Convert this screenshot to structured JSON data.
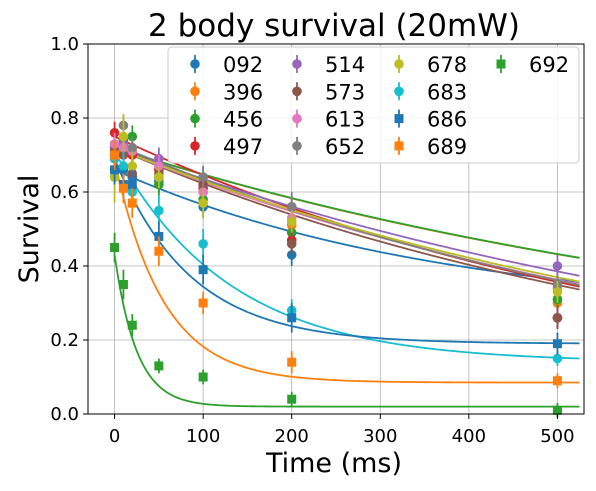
{
  "chart_data": {
    "type": "scatter",
    "title": "2 body survival (20mW)",
    "xlabel": "Time (ms)",
    "ylabel": "Survival",
    "xlim": [
      -30,
      530
    ],
    "ylim": [
      0,
      1
    ],
    "xticks": [
      0,
      100,
      200,
      300,
      400,
      500
    ],
    "yticks": [
      0.0,
      0.2,
      0.4,
      0.6,
      0.8,
      1.0
    ],
    "xtick_labels": [
      "0",
      "100",
      "200",
      "300",
      "400",
      "500"
    ],
    "ytick_labels": [
      "0.0",
      "0.2",
      "0.4",
      "0.6",
      "0.8",
      "1.0"
    ],
    "grid": true,
    "legend_position": "top-right",
    "legend_columns": 4,
    "fit_model": "exponential decay",
    "x": [
      0,
      10,
      20,
      50,
      100,
      200,
      500
    ],
    "series": [
      {
        "name": "092",
        "color": "#1f77b4",
        "marker": "circle",
        "values": [
          0.66,
          0.66,
          0.64,
          0.63,
          0.56,
          0.43,
          0.26
        ],
        "errors": [
          0.03,
          0.03,
          0.03,
          0.03,
          0.03,
          0.03,
          0.03
        ],
        "fit": {
          "a": 0.4,
          "tau": 370,
          "c": 0.26
        }
      },
      {
        "name": "396",
        "color": "#ff7f0e",
        "marker": "circle",
        "values": [
          0.7,
          0.71,
          0.7,
          0.66,
          0.6,
          0.51,
          0.3
        ],
        "errors": [
          0.03,
          0.03,
          0.03,
          0.03,
          0.03,
          0.03,
          0.03
        ],
        "fit": {
          "a": 0.62,
          "tau": 800,
          "c": 0.1
        }
      },
      {
        "name": "456",
        "color": "#2ca02c",
        "marker": "circle",
        "values": [
          0.72,
          0.74,
          0.75,
          0.62,
          0.58,
          0.49,
          0.31
        ],
        "errors": [
          0.03,
          0.03,
          0.03,
          0.03,
          0.03,
          0.03,
          0.03
        ],
        "fit": {
          "a": 0.63,
          "tau": 820,
          "c": 0.09
        }
      },
      {
        "name": "497",
        "color": "#d62728",
        "marker": "circle",
        "values": [
          0.76,
          0.73,
          0.7,
          0.66,
          0.61,
          0.47,
          0.26
        ],
        "errors": [
          0.03,
          0.03,
          0.03,
          0.03,
          0.03,
          0.03,
          0.03
        ],
        "fit": {
          "a": 0.74,
          "tau": 660,
          "c": 0.01
        }
      },
      {
        "name": "514",
        "color": "#9467bd",
        "marker": "circle",
        "values": [
          0.72,
          0.73,
          0.71,
          0.69,
          0.64,
          0.56,
          0.4
        ],
        "errors": [
          0.03,
          0.03,
          0.03,
          0.03,
          0.03,
          0.03,
          0.03
        ],
        "fit": {
          "a": 0.72,
          "tau": 800,
          "c": 0.0
        }
      },
      {
        "name": "573",
        "color": "#8c564b",
        "marker": "circle",
        "values": [
          0.71,
          0.7,
          0.65,
          0.65,
          0.62,
          0.46,
          0.26
        ],
        "errors": [
          0.03,
          0.03,
          0.03,
          0.03,
          0.03,
          0.03,
          0.03
        ],
        "fit": {
          "a": 0.72,
          "tau": 690,
          "c": 0.0
        }
      },
      {
        "name": "613",
        "color": "#e377c2",
        "marker": "circle",
        "values": [
          0.73,
          0.72,
          0.71,
          0.67,
          0.6,
          0.53,
          0.34
        ],
        "errors": [
          0.03,
          0.03,
          0.03,
          0.03,
          0.03,
          0.03,
          0.03
        ],
        "fit": {
          "a": 0.72,
          "tau": 730,
          "c": 0.0
        }
      },
      {
        "name": "652",
        "color": "#7f7f7f",
        "marker": "circle",
        "values": [
          0.69,
          0.78,
          0.72,
          0.64,
          0.64,
          0.56,
          0.35
        ],
        "errors": [
          0.03,
          0.03,
          0.03,
          0.03,
          0.03,
          0.04,
          0.03
        ],
        "fit": {
          "a": 0.73,
          "tau": 710,
          "c": 0.0
        }
      },
      {
        "name": "678",
        "color": "#bcbd22",
        "marker": "circle",
        "values": [
          0.64,
          0.75,
          0.67,
          0.64,
          0.57,
          0.52,
          0.33
        ],
        "errors": [
          0.07,
          0.06,
          0.04,
          0.03,
          0.04,
          0.03,
          0.03
        ],
        "fit": {
          "a": 0.72,
          "tau": 750,
          "c": 0.0
        }
      },
      {
        "name": "683",
        "color": "#17becf",
        "marker": "circle",
        "values": [
          0.69,
          0.67,
          0.6,
          0.55,
          0.46,
          0.28,
          0.15
        ],
        "errors": [
          0.04,
          0.04,
          0.04,
          0.04,
          0.04,
          0.03,
          0.02
        ],
        "fit": {
          "a": 0.57,
          "tau": 130,
          "c": 0.14
        }
      },
      {
        "name": "686",
        "color": "#1f77b4",
        "marker": "square",
        "values": [
          0.66,
          0.62,
          0.62,
          0.48,
          0.39,
          0.26,
          0.19
        ],
        "errors": [
          0.04,
          0.04,
          0.04,
          0.04,
          0.04,
          0.04,
          0.03
        ],
        "fit": {
          "a": 0.5,
          "tau": 85,
          "c": 0.19
        }
      },
      {
        "name": "689",
        "color": "#ff7f0e",
        "marker": "square",
        "values": [
          0.7,
          0.61,
          0.57,
          0.44,
          0.3,
          0.14,
          0.09
        ],
        "errors": [
          0.04,
          0.04,
          0.04,
          0.04,
          0.03,
          0.03,
          0.02
        ],
        "fit": {
          "a": 0.6,
          "tau": 55,
          "c": 0.085
        }
      },
      {
        "name": "692",
        "color": "#2ca02c",
        "marker": "square",
        "values": [
          0.45,
          0.35,
          0.24,
          0.13,
          0.1,
          0.04,
          0.01
        ],
        "errors": [
          0.04,
          0.04,
          0.03,
          0.02,
          0.02,
          0.02,
          0.02
        ],
        "fit": {
          "a": 0.41,
          "tau": 25,
          "c": 0.02
        }
      }
    ]
  }
}
